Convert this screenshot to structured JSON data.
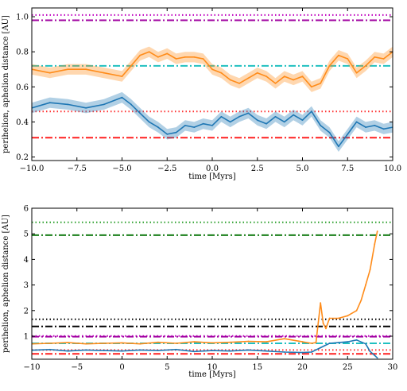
{
  "chart_data": [
    {
      "type": "line",
      "xlabel": "time [Myrs]",
      "ylabel": "perihelion, aphelion distance [AU]",
      "xlim": [
        -10,
        10
      ],
      "ylim": [
        0.18,
        1.05
      ],
      "xticks": [
        -10.0,
        -7.5,
        -5.0,
        -2.5,
        0.0,
        2.5,
        5.0,
        7.5,
        10.0
      ],
      "xtick_labels": [
        "−10.0",
        "−7.5",
        "−5.0",
        "−2.5",
        "0.0",
        "2.5",
        "5.0",
        "7.5",
        "10.0"
      ],
      "yticks": [
        0.2,
        0.4,
        0.6,
        0.8,
        1.0
      ],
      "ytick_labels": [
        "0.2",
        "0.4",
        "0.6",
        "0.8",
        "1.0"
      ],
      "grid": false,
      "reference_lines": [
        {
          "y": 1.01,
          "color": "#c000c0",
          "style": "dotted"
        },
        {
          "y": 0.98,
          "color": "#a000a0",
          "style": "dashdot"
        },
        {
          "y": 0.72,
          "color": "#20c0c0",
          "style": "dashdot"
        },
        {
          "y": 0.46,
          "color": "#ff3030",
          "style": "dotted"
        },
        {
          "y": 0.31,
          "color": "#ff2020",
          "style": "dashdot"
        }
      ],
      "series": [
        {
          "color": "#ff8c1a",
          "band": 0.03,
          "x": [
            -10,
            -9,
            -8,
            -7,
            -6,
            -5,
            -4.5,
            -4,
            -3.5,
            -3,
            -2.5,
            -2,
            -1.5,
            -1,
            -0.5,
            0,
            0.5,
            1,
            1.5,
            2,
            2.5,
            3,
            3.5,
            4,
            4.5,
            5,
            5.5,
            6,
            6.5,
            7,
            7.5,
            8,
            8.5,
            9,
            9.5,
            10
          ],
          "y": [
            0.7,
            0.68,
            0.7,
            0.7,
            0.68,
            0.66,
            0.72,
            0.78,
            0.8,
            0.77,
            0.79,
            0.76,
            0.77,
            0.77,
            0.76,
            0.7,
            0.68,
            0.64,
            0.62,
            0.65,
            0.68,
            0.66,
            0.62,
            0.66,
            0.64,
            0.66,
            0.6,
            0.62,
            0.72,
            0.78,
            0.76,
            0.68,
            0.72,
            0.77,
            0.76,
            0.8
          ]
        },
        {
          "color": "#1f77b4",
          "band": 0.03,
          "x": [
            -10,
            -9,
            -8,
            -7,
            -6,
            -5,
            -4.5,
            -4,
            -3.5,
            -3,
            -2.5,
            -2,
            -1.5,
            -1,
            -0.5,
            0,
            0.5,
            1,
            1.5,
            2,
            2.5,
            3,
            3.5,
            4,
            4.5,
            5,
            5.5,
            6,
            6.5,
            7,
            7.5,
            8,
            8.5,
            9,
            9.5,
            10
          ],
          "y": [
            0.48,
            0.51,
            0.5,
            0.48,
            0.5,
            0.54,
            0.5,
            0.45,
            0.4,
            0.37,
            0.33,
            0.34,
            0.38,
            0.37,
            0.39,
            0.38,
            0.43,
            0.4,
            0.43,
            0.45,
            0.41,
            0.39,
            0.43,
            0.4,
            0.44,
            0.41,
            0.46,
            0.38,
            0.34,
            0.26,
            0.33,
            0.4,
            0.37,
            0.38,
            0.36,
            0.37
          ]
        }
      ]
    },
    {
      "type": "line",
      "xlabel": "time [Myrs]",
      "ylabel": "perihelion, aphelion distance [AU]",
      "xlim": [
        -10,
        30
      ],
      "ylim": [
        0.1,
        6.0
      ],
      "xticks": [
        -10,
        -5,
        0,
        5,
        10,
        15,
        20,
        25,
        30
      ],
      "xtick_labels": [
        "−10",
        "−5",
        "0",
        "5",
        "10",
        "15",
        "20",
        "25",
        "30"
      ],
      "yticks": [
        1,
        2,
        3,
        4,
        5,
        6
      ],
      "ytick_labels": [
        "1",
        "2",
        "3",
        "4",
        "5",
        "6"
      ],
      "grid": false,
      "reference_lines": [
        {
          "y": 5.45,
          "color": "#2ca02c",
          "style": "dotted"
        },
        {
          "y": 4.95,
          "color": "#1a7f1a",
          "style": "dashdot"
        },
        {
          "y": 1.66,
          "color": "#000000",
          "style": "dotted"
        },
        {
          "y": 1.38,
          "color": "#000000",
          "style": "dashdot"
        },
        {
          "y": 1.01,
          "color": "#c000c0",
          "style": "dotted"
        },
        {
          "y": 0.98,
          "color": "#a000a0",
          "style": "dashdot"
        },
        {
          "y": 0.72,
          "color": "#20c0c0",
          "style": "dashdot"
        },
        {
          "y": 0.46,
          "color": "#ff3030",
          "style": "dotted"
        },
        {
          "y": 0.31,
          "color": "#ff2020",
          "style": "dashdot"
        }
      ],
      "series": [
        {
          "color": "#ff8c1a",
          "x": [
            -10,
            -8,
            -6,
            -4,
            -2,
            0,
            2,
            4,
            6,
            8,
            10,
            12,
            14,
            16,
            18,
            20,
            21,
            21.5,
            22,
            22.3,
            22.6,
            23,
            24,
            25,
            26,
            26.5,
            27,
            27.5,
            28,
            28.3
          ],
          "y": [
            0.7,
            0.72,
            0.75,
            0.7,
            0.72,
            0.74,
            0.7,
            0.76,
            0.72,
            0.78,
            0.74,
            0.76,
            0.8,
            0.78,
            0.9,
            0.78,
            0.72,
            0.75,
            2.3,
            1.5,
            1.3,
            1.7,
            1.7,
            1.8,
            2.0,
            2.4,
            3.0,
            3.6,
            4.6,
            5.1
          ]
        },
        {
          "color": "#1f77b4",
          "x": [
            -10,
            -8,
            -6,
            -4,
            -2,
            0,
            2,
            4,
            6,
            8,
            10,
            12,
            14,
            16,
            18,
            20,
            21,
            22,
            23,
            24,
            25,
            26,
            27,
            27.5,
            28,
            28.3
          ],
          "y": [
            0.45,
            0.48,
            0.42,
            0.46,
            0.44,
            0.42,
            0.46,
            0.44,
            0.48,
            0.4,
            0.44,
            0.42,
            0.46,
            0.42,
            0.38,
            0.36,
            0.38,
            0.55,
            0.72,
            0.75,
            0.78,
            0.85,
            0.7,
            0.4,
            0.25,
            0.15
          ]
        }
      ]
    }
  ]
}
